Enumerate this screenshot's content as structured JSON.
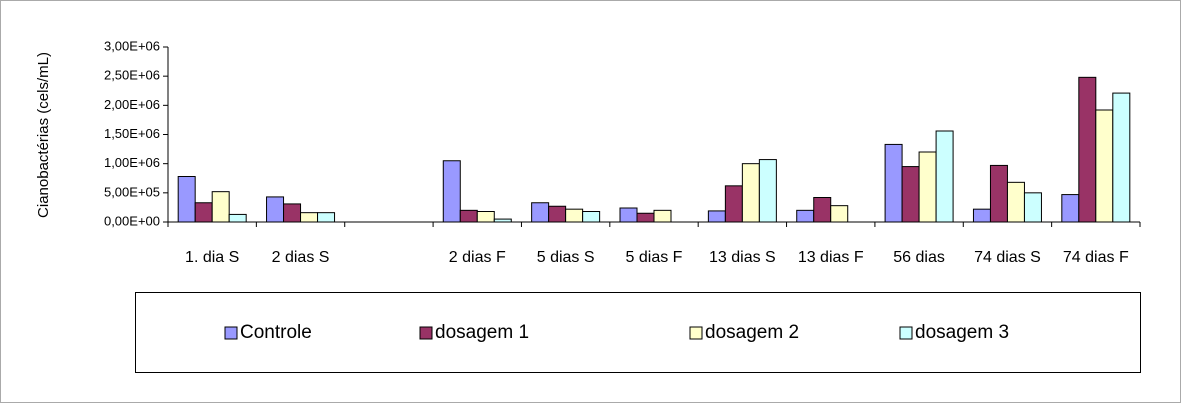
{
  "chart_data": {
    "type": "bar",
    "y_label": "Cianobactérias (cels/mL)",
    "categories": [
      "1. dia S",
      "2 dias S",
      null,
      "2 dias F",
      "5 dias S",
      "5 dias F",
      "13 dias S",
      "13 dias F",
      "56 dias",
      "74 dias S",
      "74 dias F"
    ],
    "series": [
      {
        "name": "Controle",
        "color": "#9999ff",
        "values": [
          780000,
          430000,
          null,
          1050000,
          330000,
          240000,
          190000,
          200000,
          1330000,
          220000,
          470000
        ]
      },
      {
        "name": "dosagem 1",
        "color": "#993366",
        "values": [
          330000,
          310000,
          null,
          200000,
          270000,
          150000,
          620000,
          420000,
          950000,
          970000,
          2480000
        ]
      },
      {
        "name": "dosagem 2",
        "color": "#ffffcc",
        "values": [
          520000,
          160000,
          null,
          180000,
          220000,
          200000,
          1000000,
          280000,
          1200000,
          680000,
          1920000
        ]
      },
      {
        "name": "dosagem 3",
        "color": "#ccffff",
        "values": [
          130000,
          160000,
          null,
          50000,
          180000,
          null,
          1070000,
          null,
          1560000,
          500000,
          2210000
        ]
      }
    ],
    "ylim": [
      0,
      3000000
    ],
    "yticks": [
      {
        "value": 0,
        "label": "0,00E+00"
      },
      {
        "value": 500000,
        "label": "5,00E+05"
      },
      {
        "value": 1000000,
        "label": "1,00E+06"
      },
      {
        "value": 1500000,
        "label": "1,50E+06"
      },
      {
        "value": 2000000,
        "label": "2,00E+06"
      },
      {
        "value": 2500000,
        "label": "2,50E+06"
      },
      {
        "value": 3000000,
        "label": "3,00E+06"
      }
    ],
    "legend": "bottom"
  }
}
